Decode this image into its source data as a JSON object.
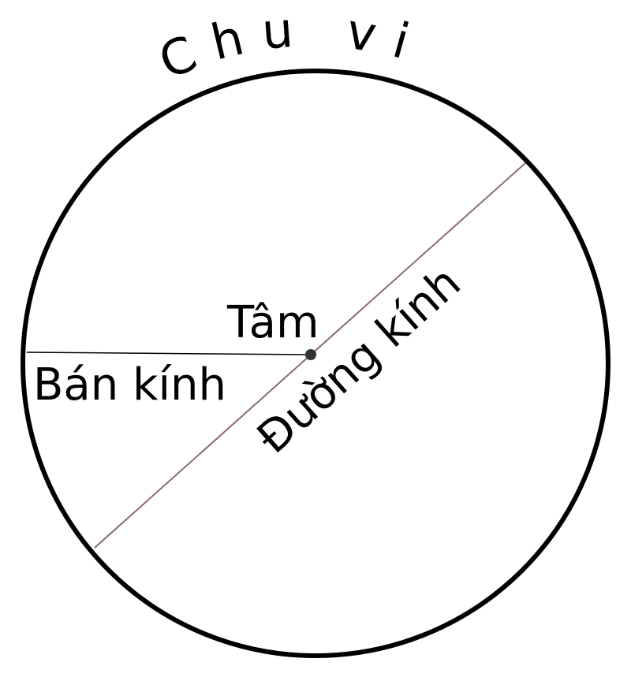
{
  "diagram": {
    "labels": {
      "circumference": "Chu vi",
      "center": "Tâm",
      "radius": "Bán kính",
      "diameter": "Đường kính"
    },
    "colors": {
      "outline": "#000000",
      "radius_line": "#000000",
      "diameter_line": "#8b6b6b",
      "center_point": "#333333",
      "background": "#ffffff"
    }
  }
}
